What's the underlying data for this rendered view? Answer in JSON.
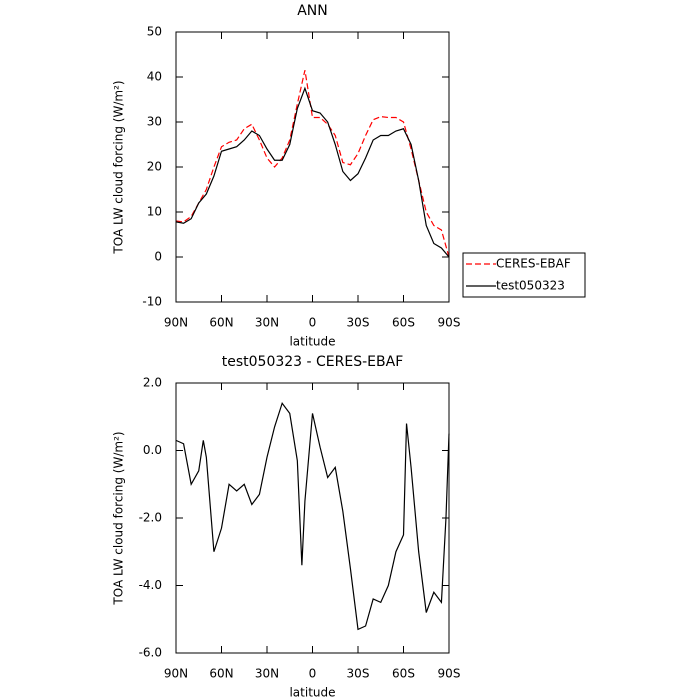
{
  "chart_data": [
    {
      "type": "line",
      "title": "ANN",
      "x_label": "latitude",
      "y_label": "TOA LW cloud forcing (W/m²)",
      "x": [
        90,
        85,
        80,
        75,
        70,
        65,
        60,
        55,
        50,
        45,
        40,
        35,
        30,
        25,
        20,
        15,
        10,
        5,
        0,
        -5,
        -10,
        -15,
        -20,
        -25,
        -30,
        -35,
        -40,
        -45,
        -50,
        -55,
        -60,
        -65,
        -70,
        -75,
        -80,
        -85,
        -90
      ],
      "series": [
        {
          "name": "CERES-EBAF",
          "color": "#ff0000",
          "dash": true,
          "values": [
            8,
            7.8,
            9,
            12,
            15,
            20,
            24.5,
            25.5,
            26,
            28.5,
            29.5,
            26,
            22,
            20,
            22,
            26,
            34,
            41.5,
            31,
            31,
            29.5,
            27,
            21,
            20.5,
            23,
            27,
            30.5,
            31.2,
            31,
            31,
            30,
            24,
            17,
            10,
            7,
            6,
            0
          ]
        },
        {
          "name": "test050323",
          "color": "#000000",
          "dash": false,
          "values": [
            7.8,
            7.5,
            8.5,
            12,
            14,
            18,
            23.5,
            24,
            24.5,
            26,
            28,
            27,
            24,
            21.5,
            21.5,
            25,
            33,
            37.5,
            32.5,
            32,
            30,
            25,
            19,
            17,
            18.5,
            22,
            26,
            27,
            27,
            28,
            28.5,
            25,
            17,
            7,
            3,
            2,
            0
          ]
        }
      ],
      "xlim": [
        90,
        -90
      ],
      "xticks": [
        {
          "value": 90,
          "label": "90N"
        },
        {
          "value": 60,
          "label": "60N"
        },
        {
          "value": 30,
          "label": "30N"
        },
        0,
        {
          "value": -30,
          "label": "30S"
        },
        {
          "value": -60,
          "label": "60S"
        },
        {
          "value": -90,
          "label": "90S"
        }
      ],
      "ylim": [
        -10,
        50
      ],
      "yticks": [
        -10,
        0,
        10,
        20,
        30,
        40,
        50
      ],
      "legend": "right"
    },
    {
      "type": "line",
      "title": "test050323 - CERES-EBAF",
      "x_label": "latitude",
      "y_label": "TOA LW cloud forcing (W/m²)",
      "x": [
        90,
        85,
        80,
        75,
        72,
        70,
        65,
        60,
        55,
        50,
        45,
        40,
        35,
        30,
        25,
        20,
        15,
        10,
        7,
        5,
        0,
        -5,
        -10,
        -15,
        -20,
        -25,
        -30,
        -35,
        -40,
        -45,
        -50,
        -55,
        -60,
        -62,
        -65,
        -70,
        -75,
        -80,
        -85,
        -88,
        -90
      ],
      "series": [
        {
          "color": "#000000",
          "dash": false,
          "values": [
            0.3,
            0.2,
            -1.0,
            -0.6,
            0.3,
            -0.2,
            -3.0,
            -2.3,
            -1.0,
            -1.2,
            -1.0,
            -1.6,
            -1.3,
            -0.2,
            0.7,
            1.4,
            1.1,
            -0.3,
            -3.4,
            -1.5,
            1.1,
            0.1,
            -0.8,
            -0.5,
            -1.8,
            -3.5,
            -5.3,
            -5.2,
            -4.4,
            -4.5,
            -4.0,
            -3.0,
            -2.5,
            0.8,
            -0.5,
            -3.0,
            -4.8,
            -4.2,
            -4.5,
            -2.0,
            0.5
          ]
        }
      ],
      "xlim": [
        90,
        -90
      ],
      "xticks": [
        {
          "value": 90,
          "label": "90N"
        },
        {
          "value": 60,
          "label": "60N"
        },
        {
          "value": 30,
          "label": "30N"
        },
        0,
        {
          "value": -30,
          "label": "30S"
        },
        {
          "value": -60,
          "label": "60S"
        },
        {
          "value": -90,
          "label": "90S"
        }
      ],
      "ylim": [
        -6,
        2
      ],
      "yticks": [
        {
          "value": -6,
          "label": "-6.0"
        },
        {
          "value": -4,
          "label": "-4.0"
        },
        {
          "value": -2,
          "label": "-2.0"
        },
        {
          "value": 0,
          "label": "0.0"
        },
        {
          "value": 2,
          "label": "2.0"
        }
      ]
    }
  ]
}
